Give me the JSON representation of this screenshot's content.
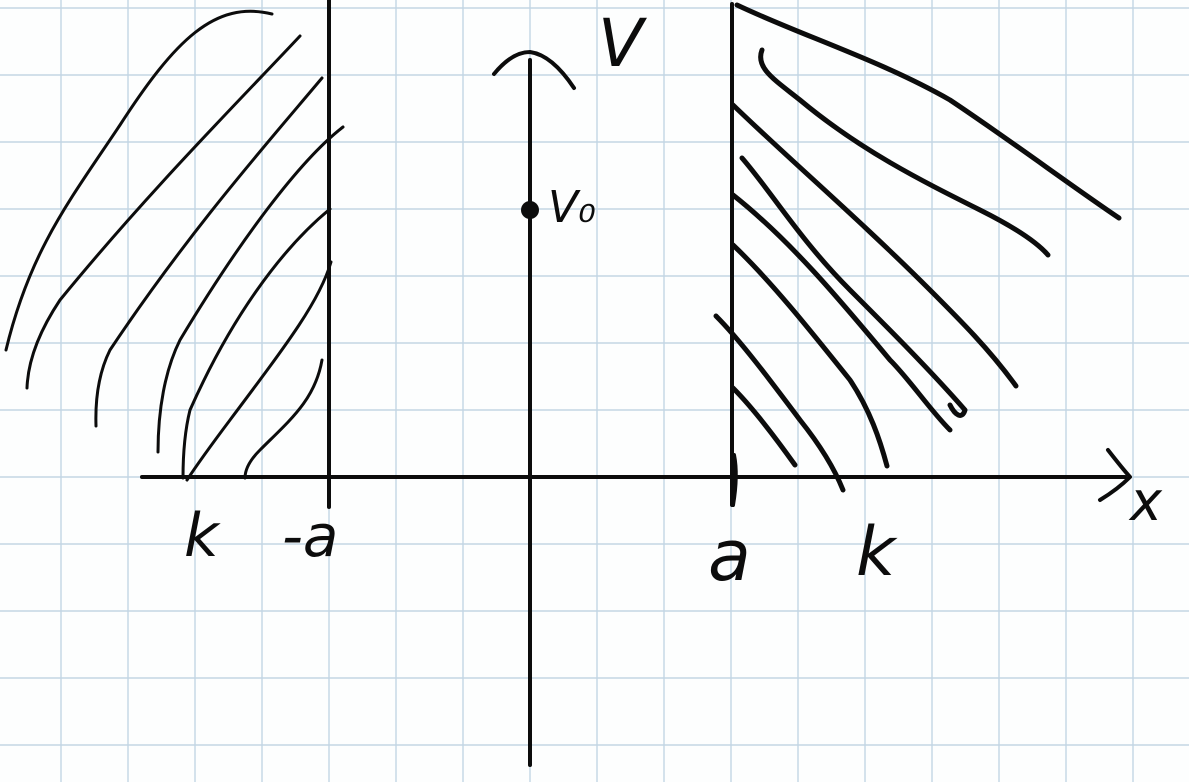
{
  "labels": {
    "y_axis": "V",
    "x_axis": "x",
    "v0": "V₀",
    "left_k": "k",
    "left_a": "-a",
    "right_a": "a",
    "right_k": "k"
  },
  "colors": {
    "ink": "#0c0c0c",
    "grid": "#c3d6e4",
    "paper": "#fdfefe"
  }
}
